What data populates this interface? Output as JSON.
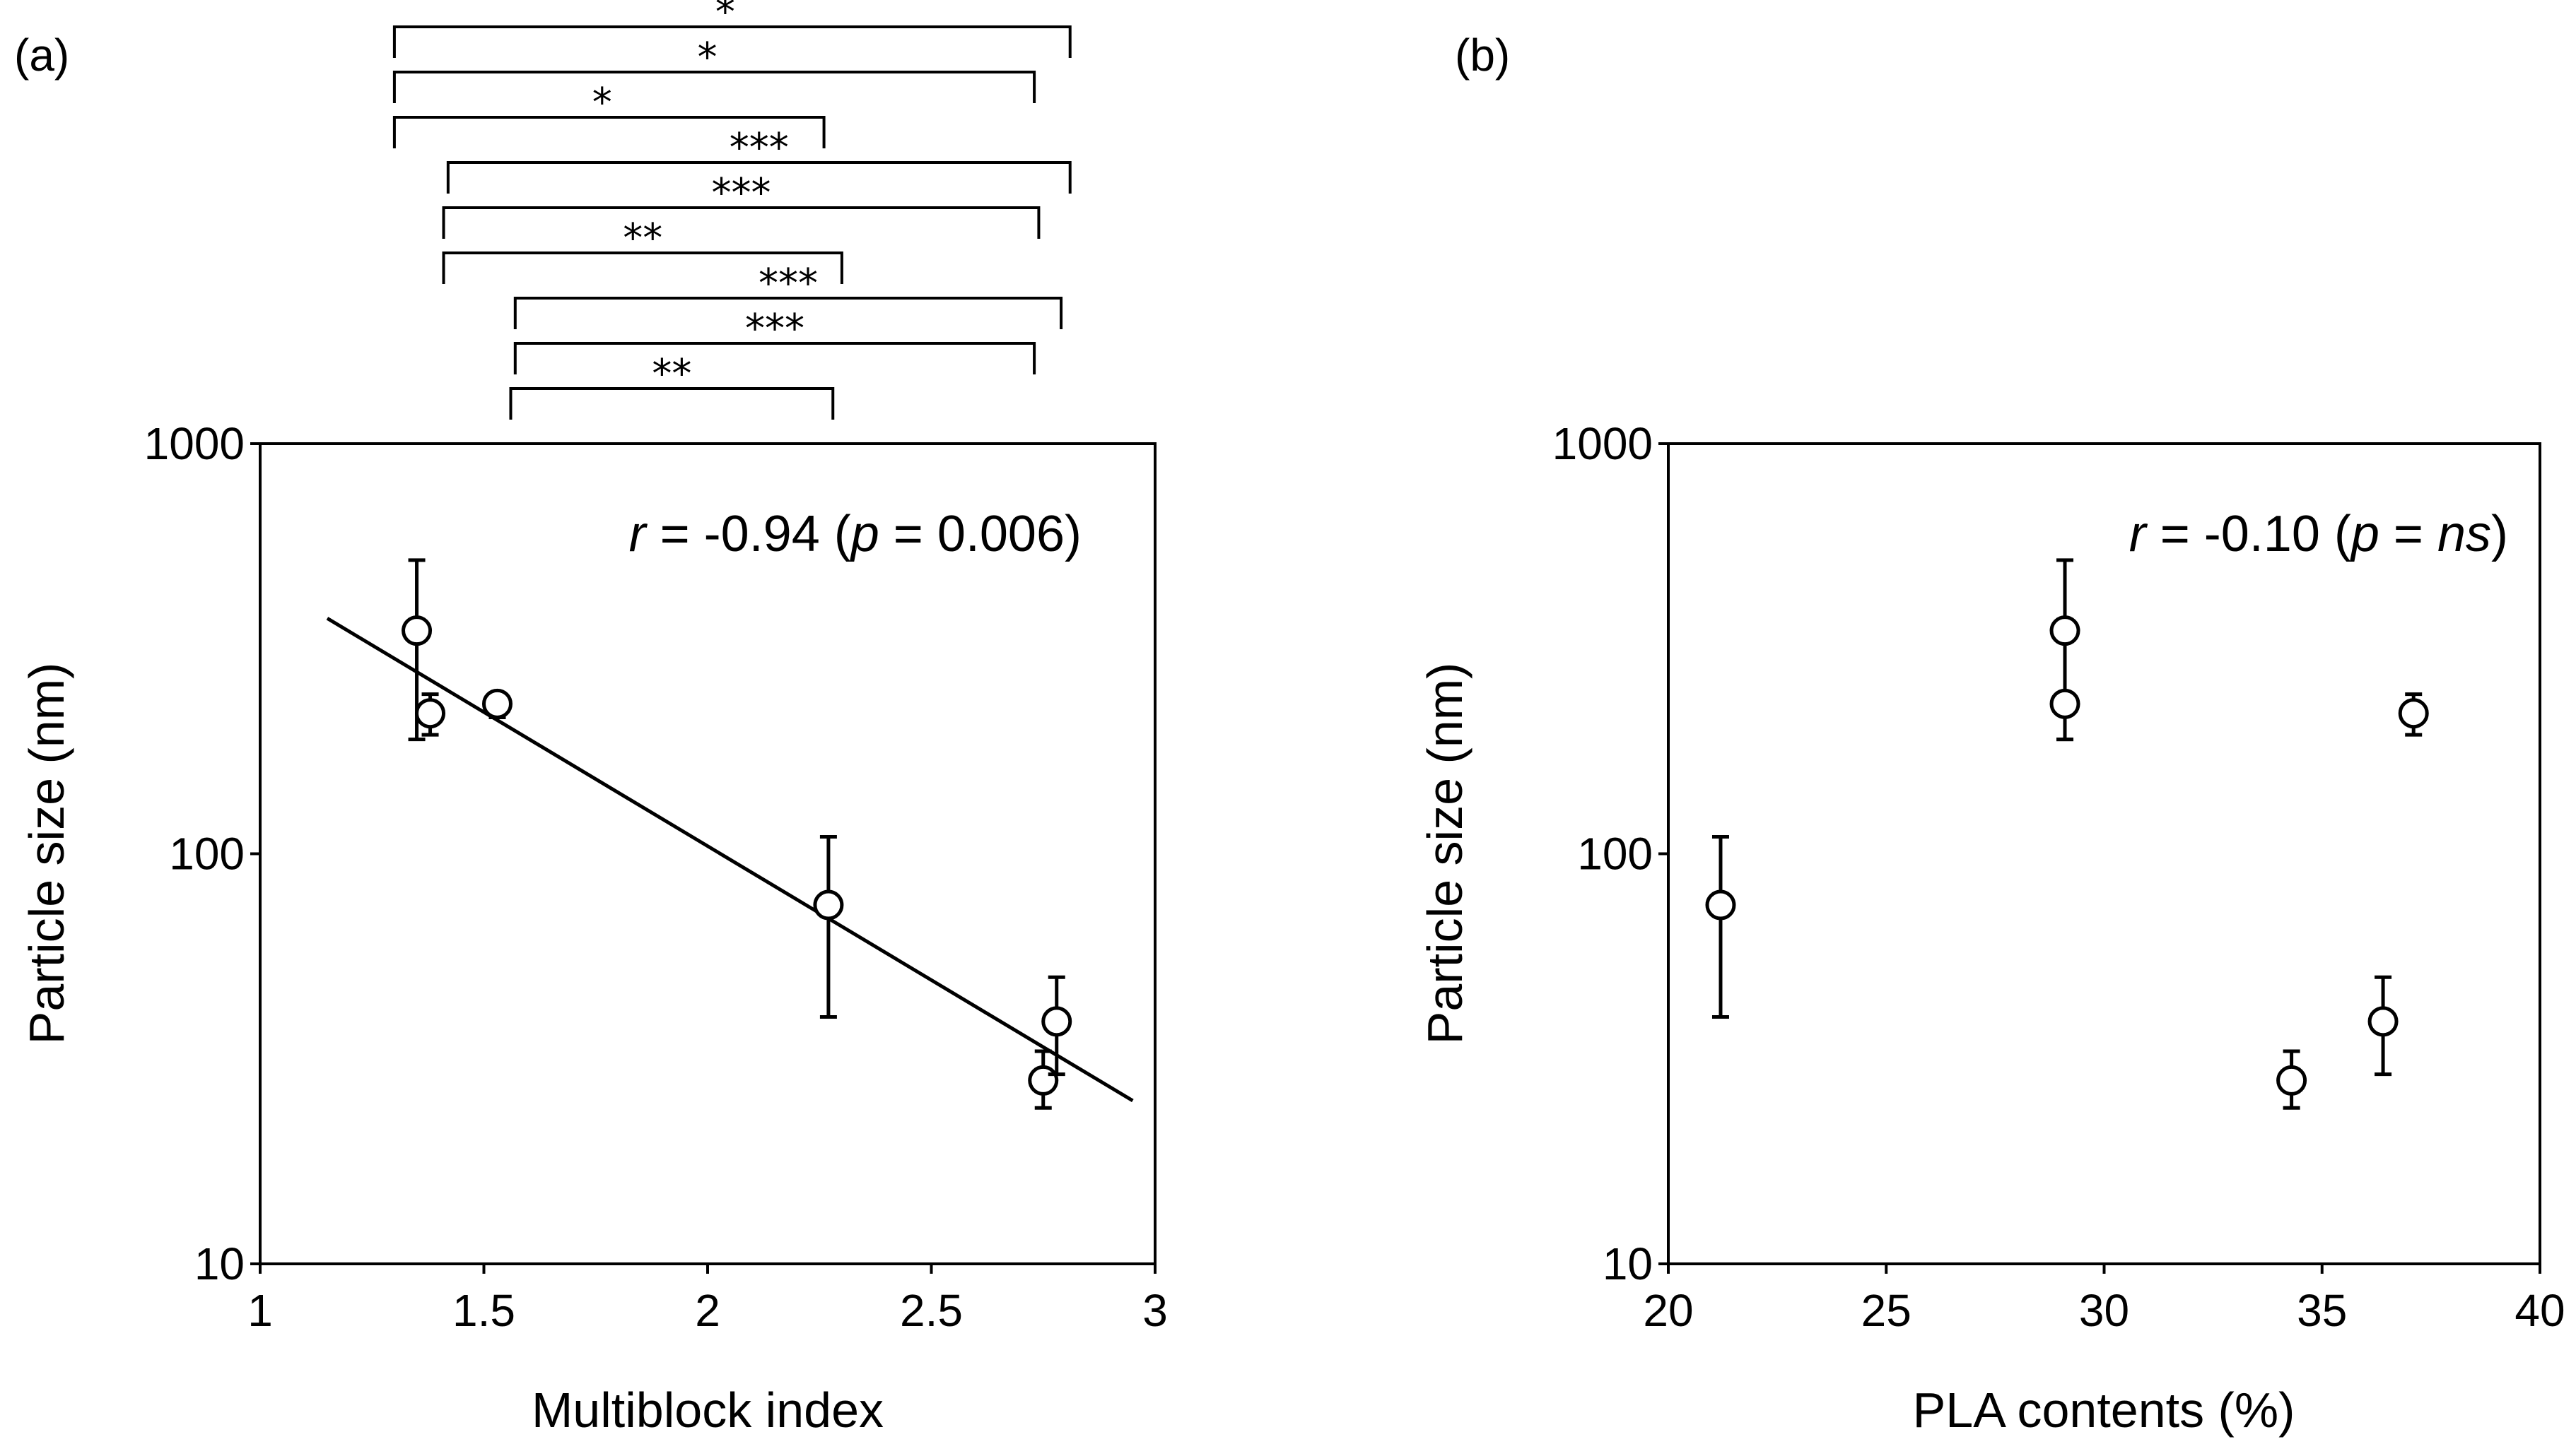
{
  "chart_data": [
    {
      "id": "a",
      "panel_label": "(a)",
      "type": "scatter",
      "xlabel": "Multiblock index",
      "ylabel": "Particle size (nm)",
      "xlim": [
        1,
        3
      ],
      "xticks": [
        "1",
        "1.5",
        "2",
        "2.5",
        "3"
      ],
      "xtick_values": [
        1,
        1.5,
        2,
        2.5,
        3
      ],
      "yscale": "log",
      "ylim": [
        10,
        1000
      ],
      "yticks": [
        "10",
        "100",
        "1000"
      ],
      "ytick_values": [
        10,
        100,
        1000
      ],
      "annotation": {
        "r_symbol": "r",
        "r_value": " = -0.94 (",
        "p_symbol": "p",
        "p_value": " = 0.006)"
      },
      "points": [
        {
          "x": 1.35,
          "y": 350,
          "err_low": 190,
          "err_high": 520
        },
        {
          "x": 1.38,
          "y": 220,
          "err_low": 195,
          "err_high": 245
        },
        {
          "x": 1.53,
          "y": 232,
          "err_low": 215,
          "err_high": 245
        },
        {
          "x": 2.27,
          "y": 75,
          "err_low": 40,
          "err_high": 110
        },
        {
          "x": 2.75,
          "y": 28,
          "err_low": 24,
          "err_high": 33
        },
        {
          "x": 2.78,
          "y": 39,
          "err_low": 29,
          "err_high": 50
        }
      ],
      "trendline": {
        "x1": 1.15,
        "y1": 375,
        "x2": 2.95,
        "y2": 25
      },
      "significance": [
        {
          "x1": 1.3,
          "x2": 2.81,
          "label": "*"
        },
        {
          "x1": 1.3,
          "x2": 2.73,
          "label": "*"
        },
        {
          "x1": 1.3,
          "x2": 2.26,
          "label": "*"
        },
        {
          "x1": 1.42,
          "x2": 2.81,
          "label": "***"
        },
        {
          "x1": 1.41,
          "x2": 2.74,
          "label": "***"
        },
        {
          "x1": 1.41,
          "x2": 2.3,
          "label": "**"
        },
        {
          "x1": 1.57,
          "x2": 2.79,
          "label": "***"
        },
        {
          "x1": 1.57,
          "x2": 2.73,
          "label": "***"
        },
        {
          "x1": 1.56,
          "x2": 2.28,
          "label": "**"
        }
      ]
    },
    {
      "id": "b",
      "panel_label": "(b)",
      "type": "scatter",
      "xlabel": "PLA contents (%)",
      "ylabel": "Particle size (nm)",
      "xlim": [
        20,
        40
      ],
      "xticks": [
        "20",
        "25",
        "30",
        "35",
        "40"
      ],
      "xtick_values": [
        20,
        25,
        30,
        35,
        40
      ],
      "yscale": "log",
      "ylim": [
        10,
        1000
      ],
      "yticks": [
        "10",
        "100",
        "1000"
      ],
      "ytick_values": [
        10,
        100,
        1000
      ],
      "annotation": {
        "r_symbol": "r",
        "r_value": " = -0.10 (",
        "p_symbol": "p",
        "p_value": " = ",
        "ns": "ns",
        "close": ")"
      },
      "points": [
        {
          "x": 21.2,
          "y": 75,
          "err_low": 40,
          "err_high": 110
        },
        {
          "x": 29.1,
          "y": 350,
          "err_low": 190,
          "err_high": 520
        },
        {
          "x": 29.1,
          "y": 232,
          "err_low": 190,
          "err_high": 245
        },
        {
          "x": 37.1,
          "y": 220,
          "err_low": 195,
          "err_high": 245
        },
        {
          "x": 34.3,
          "y": 28,
          "err_low": 24,
          "err_high": 33
        },
        {
          "x": 36.4,
          "y": 39,
          "err_low": 29,
          "err_high": 50
        }
      ]
    }
  ]
}
